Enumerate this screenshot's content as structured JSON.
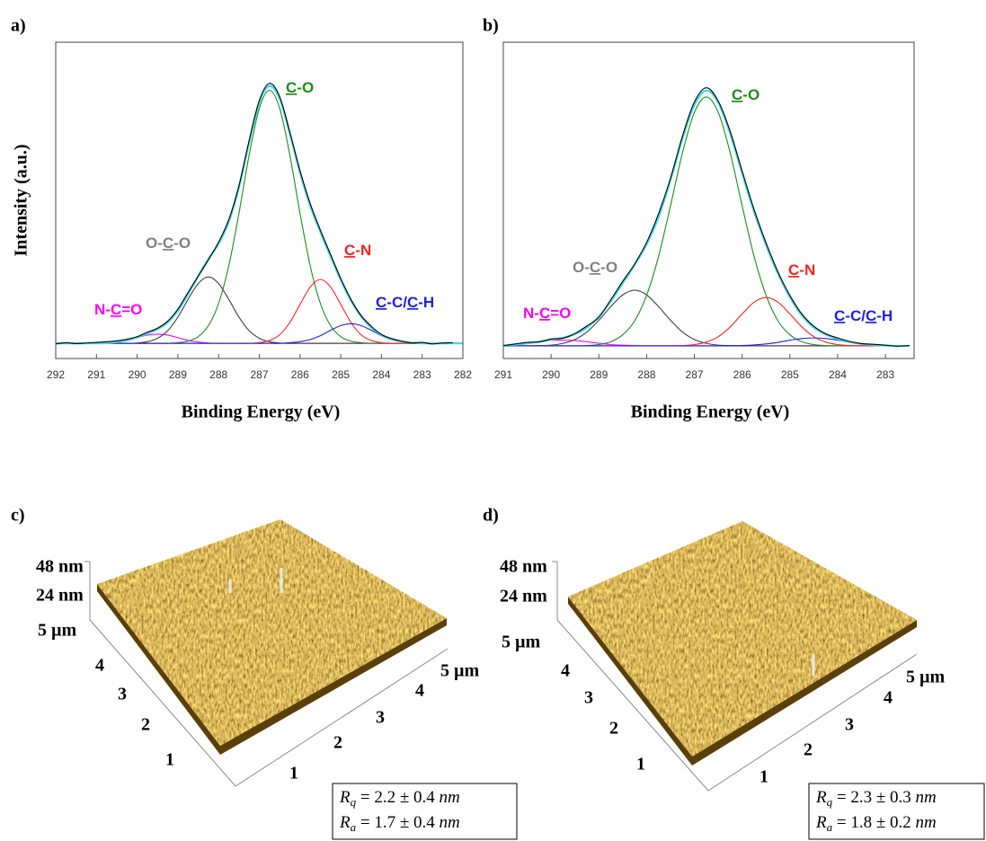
{
  "chart_data": [
    {
      "type": "line",
      "panel_label": "a)",
      "xlabel": "Binding Energy (eV)",
      "ylabel": "Intensity (a.u.)",
      "xlim": [
        292,
        282
      ],
      "xticks": [
        292,
        291,
        290,
        289,
        288,
        287,
        286,
        285,
        284,
        283,
        282
      ],
      "ylim": [
        0,
        100
      ],
      "x": [
        292,
        291.75,
        291.5,
        291.25,
        291,
        290.75,
        290.5,
        290.25,
        290,
        289.75,
        289.5,
        289.25,
        289,
        288.75,
        288.5,
        288.25,
        288,
        287.75,
        287.5,
        287.25,
        287,
        286.75,
        286.5,
        286.25,
        286,
        285.75,
        285.5,
        285.25,
        285,
        284.75,
        284.5,
        284.25,
        284,
        283.75,
        283.5,
        283.25,
        283,
        282.75,
        282.5,
        282.25,
        282
      ],
      "series": [
        {
          "color": "#ff00ff",
          "values": [
            4.8,
            4.8,
            4.8,
            4.8,
            4.8,
            4.8,
            4.8,
            4.8,
            4.8,
            4.8,
            4.8,
            4.8,
            4.8,
            4.8,
            4.8,
            4.8,
            4.8,
            4.8,
            4.8,
            4.8,
            4.8,
            4.8,
            4.8,
            4.8,
            4.8,
            4.8,
            4.8,
            4.8,
            4.8,
            4.8,
            4.8,
            4.8,
            4.8,
            4.8,
            4.8,
            4.8,
            4.8,
            4.8,
            4.8,
            4.8,
            4.8
          ]
        },
        {
          "color": "#ff00ff",
          "values": [
            4.8,
            4.8,
            4.8,
            4.8,
            4.8,
            4.9,
            5.2,
            5.7,
            6.6,
            7.4,
            7.7,
            7.4,
            6.6,
            5.7,
            5.2,
            4.9,
            4.8,
            4.8,
            4.8,
            4.8,
            4.8,
            4.8,
            4.8,
            4.8,
            4.8,
            4.8,
            4.8,
            4.8,
            4.8,
            4.8,
            4.8,
            4.8,
            4.8,
            4.8,
            4.8,
            4.8,
            4.8,
            4.8,
            4.8,
            4.8,
            4.8
          ]
        },
        {
          "color": "#404040",
          "values": [
            4.8,
            4.8,
            4.8,
            4.8,
            4.8,
            4.8,
            4.8,
            4.8,
            4.9,
            5.3,
            6.4,
            8.8,
            13.1,
            18.7,
            23.7,
            25.8,
            23.7,
            18.7,
            13.1,
            8.8,
            6.4,
            5.3,
            4.9,
            4.8,
            4.8,
            4.8,
            4.8,
            4.8,
            4.8,
            4.8,
            4.8,
            4.8,
            4.8,
            4.8,
            4.8,
            4.8,
            4.8,
            4.8,
            4.8,
            4.8,
            4.8
          ]
        },
        {
          "color": "#1a8c1a",
          "values": [
            4.8,
            4.8,
            4.8,
            4.8,
            4.8,
            4.8,
            4.8,
            4.8,
            4.8,
            4.8,
            4.8,
            4.8,
            5.0,
            5.5,
            6.9,
            10.4,
            17.4,
            29.3,
            45.9,
            64.3,
            79.1,
            84.8,
            79.1,
            64.3,
            45.9,
            29.3,
            17.4,
            10.4,
            6.9,
            5.5,
            5.0,
            4.8,
            4.8,
            4.8,
            4.8,
            4.8,
            4.8,
            4.8,
            4.8,
            4.8,
            4.8
          ]
        },
        {
          "color": "#ff2020",
          "values": [
            4.8,
            4.8,
            4.8,
            4.8,
            4.8,
            4.8,
            4.8,
            4.8,
            4.8,
            4.8,
            4.8,
            4.8,
            4.8,
            4.8,
            4.8,
            4.8,
            4.8,
            4.8,
            4.8,
            4.8,
            5.0,
            5.7,
            7.5,
            11.4,
            17.1,
            22.6,
            25.0,
            22.6,
            17.1,
            11.4,
            7.5,
            5.7,
            5.0,
            4.8,
            4.8,
            4.8,
            4.8,
            4.8,
            4.8,
            4.8,
            4.8
          ]
        },
        {
          "color": "#2020e0",
          "values": [
            4.8,
            4.8,
            4.8,
            4.8,
            4.8,
            4.8,
            4.8,
            4.8,
            4.8,
            4.8,
            4.8,
            4.8,
            4.8,
            4.8,
            4.8,
            4.8,
            4.8,
            4.8,
            4.8,
            4.8,
            4.8,
            4.8,
            4.8,
            5.0,
            5.3,
            6.0,
            7.2,
            8.9,
            10.4,
            11.0,
            10.4,
            8.9,
            7.2,
            6.0,
            5.3,
            5.0,
            4.8,
            4.8,
            4.8,
            4.8,
            4.8
          ]
        },
        {
          "color": "#40d8e8",
          "values": [
            4.8,
            4.8,
            4.8,
            4.8,
            4.8,
            4.9,
            5.2,
            5.7,
            6.7,
            7.9,
            9.3,
            11.4,
            15.1,
            20.3,
            26.2,
            31.5,
            36.3,
            43.2,
            54.2,
            68.3,
            80.9,
            86.2,
            82.1,
            71.1,
            58.7,
            48.3,
            40.0,
            32.3,
            24.8,
            18.3,
            13.3,
            9.8,
            7.4,
            6.0,
            5.3,
            5.0,
            4.8,
            4.8,
            4.8,
            4.8,
            4.8
          ]
        },
        {
          "color": "#000000",
          "values": [
            4.6,
            5.0,
            4.7,
            4.9,
            5.1,
            5.3,
            5.6,
            6.1,
            6.9,
            8.3,
            9.6,
            11.8,
            15.6,
            20.9,
            26.0,
            31.2,
            36.8,
            43.9,
            54.6,
            68.9,
            81.6,
            87.0,
            82.8,
            71.6,
            59.4,
            49.0,
            40.6,
            32.9,
            25.3,
            18.7,
            13.6,
            10.2,
            7.6,
            6.3,
            5.5,
            4.9,
            5.1,
            4.6,
            4.9,
            5.0,
            null
          ]
        }
      ],
      "annotations": [
        {
          "color": "#ff00ff",
          "parts": [
            {
              "text": "N-"
            },
            {
              "text": "C",
              "underline": true
            },
            {
              "text": "=O"
            }
          ]
        },
        {
          "color": "#808080",
          "parts": [
            {
              "text": "O-"
            },
            {
              "text": "C",
              "underline": true
            },
            {
              "text": "-O"
            }
          ]
        },
        {
          "color": "#1a8c1a",
          "parts": [
            {
              "text": "C",
              "underline": true
            },
            {
              "text": "-O"
            }
          ]
        },
        {
          "color": "#ff2020",
          "parts": [
            {
              "text": "C",
              "underline": true
            },
            {
              "text": "-N"
            }
          ]
        },
        {
          "color": "#2020e0",
          "parts": [
            {
              "text": "C",
              "underline": true
            },
            {
              "text": "-C/"
            },
            {
              "text": "C",
              "underline": true
            },
            {
              "text": "-H"
            }
          ]
        }
      ]
    },
    {
      "type": "line",
      "panel_label": "b)",
      "xlabel": "Binding Energy (eV)",
      "xlim": [
        291,
        282.4
      ],
      "xticks": [
        291,
        290,
        289,
        288,
        287,
        286,
        285,
        284,
        283
      ],
      "ylim": [
        0,
        100
      ],
      "x": [
        291,
        290.75,
        290.5,
        290.25,
        290,
        289.75,
        289.5,
        289.25,
        289,
        288.75,
        288.5,
        288.25,
        288,
        287.75,
        287.5,
        287.25,
        287,
        286.75,
        286.5,
        286.25,
        286,
        285.75,
        285.5,
        285.25,
        285,
        284.75,
        284.5,
        284.25,
        284,
        283.75,
        283.5,
        283.25,
        283,
        282.75,
        282.5
      ],
      "series": [
        {
          "color": "#ff00ff",
          "values": [
            4.0,
            4.0,
            4.0,
            4.0,
            4.0,
            4.0,
            4.0,
            4.0,
            4.0,
            4.0,
            4.0,
            4.0,
            4.0,
            4.0,
            4.0,
            4.0,
            4.0,
            4.0,
            4.0,
            4.0,
            4.0,
            4.0,
            4.0,
            4.0,
            4.0,
            4.0,
            4.0,
            4.0,
            4.0,
            4.0,
            4.0,
            4.0,
            4.0,
            4.0,
            4.0
          ]
        },
        {
          "color": "#ff00ff",
          "values": [
            4.2,
            4.4,
            4.8,
            5.3,
            5.7,
            5.8,
            5.7,
            5.3,
            4.8,
            4.4,
            4.2,
            4.1,
            4.0,
            4.0,
            4.0,
            4.0,
            4.0,
            4.0,
            4.0,
            4.0,
            4.0,
            4.0,
            4.0,
            4.0,
            4.0,
            4.0,
            4.0,
            4.0,
            4.0,
            4.0,
            4.0,
            4.0,
            4.0,
            4.0,
            4.0
          ]
        },
        {
          "color": "#404040",
          "values": [
            4.0,
            4.0,
            4.0,
            4.1,
            4.2,
            4.8,
            6.0,
            8.4,
            12.1,
            16.4,
            20.1,
            21.6,
            20.1,
            16.4,
            12.1,
            8.4,
            6.0,
            4.8,
            4.2,
            4.1,
            4.0,
            4.0,
            4.0,
            4.0,
            4.0,
            4.0,
            4.0,
            4.0,
            4.0,
            4.0,
            4.0,
            4.0,
            4.0,
            4.0,
            4.0
          ]
        },
        {
          "color": "#1a8c1a",
          "values": [
            4.0,
            4.0,
            4.0,
            4.0,
            4.0,
            4.0,
            4.0,
            4.1,
            4.4,
            5.3,
            7.5,
            11.9,
            20.0,
            32.3,
            48.3,
            65.0,
            77.8,
            82.7,
            77.8,
            65.0,
            48.3,
            32.3,
            20.0,
            11.9,
            7.5,
            5.3,
            4.4,
            4.1,
            4.0,
            4.0,
            4.0,
            4.0,
            4.0,
            4.0,
            4.0
          ]
        },
        {
          "color": "#ff2020",
          "values": [
            4.0,
            4.0,
            4.0,
            4.0,
            4.0,
            4.0,
            4.0,
            4.0,
            4.0,
            4.0,
            4.0,
            4.0,
            4.0,
            4.0,
            4.0,
            4.1,
            4.4,
            5.2,
            6.9,
            10.0,
            14.1,
            17.8,
            19.3,
            17.8,
            14.1,
            10.0,
            6.9,
            5.2,
            4.4,
            4.1,
            4.0,
            4.0,
            4.0,
            4.0,
            4.0
          ]
        },
        {
          "color": "#2020e0",
          "values": [
            4.0,
            4.0,
            4.0,
            4.0,
            4.0,
            4.0,
            4.0,
            4.0,
            4.0,
            4.0,
            4.0,
            4.0,
            4.0,
            4.0,
            4.0,
            4.0,
            4.0,
            4.0,
            4.0,
            4.0,
            4.1,
            4.3,
            4.6,
            5.1,
            5.8,
            6.3,
            6.5,
            6.3,
            5.8,
            5.1,
            4.6,
            4.3,
            4.1,
            4.0,
            4.0
          ]
        },
        {
          "color": "#40d8e8",
          "values": [
            4.2,
            4.4,
            4.8,
            5.4,
            5.9,
            6.6,
            7.7,
            9.8,
            13.3,
            18.1,
            23.8,
            29.6,
            36.1,
            44.7,
            56.4,
            69.5,
            80.2,
            84.7,
            80.9,
            71.1,
            58.5,
            46.4,
            35.9,
            26.8,
            19.4,
            13.6,
            9.8,
            7.6,
            6.2,
            5.2,
            4.6,
            4.3,
            4.1,
            4.0,
            4.0
          ]
        },
        {
          "color": "#000000",
          "values": [
            4.0,
            4.6,
            5.1,
            5.2,
            6.2,
            6.4,
            7.9,
            10.3,
            13.0,
            18.6,
            24.4,
            29.9,
            36.7,
            45.8,
            57.0,
            70.3,
            81.1,
            85.6,
            81.4,
            71.8,
            59.3,
            47.1,
            36.6,
            27.4,
            19.9,
            14.1,
            10.2,
            7.8,
            6.5,
            5.4,
            4.7,
            4.5,
            4.2,
            3.9,
            4.1
          ]
        }
      ],
      "annotations": [
        {
          "color": "#ff00ff",
          "parts": [
            {
              "text": "N-"
            },
            {
              "text": "C",
              "underline": true
            },
            {
              "text": "=O"
            }
          ]
        },
        {
          "color": "#808080",
          "parts": [
            {
              "text": "O-"
            },
            {
              "text": "C",
              "underline": true
            },
            {
              "text": "-O"
            }
          ]
        },
        {
          "color": "#1a8c1a",
          "parts": [
            {
              "text": "C",
              "underline": true
            },
            {
              "text": "-O"
            }
          ]
        },
        {
          "color": "#ff2020",
          "parts": [
            {
              "text": "C",
              "underline": true
            },
            {
              "text": "-N"
            }
          ]
        },
        {
          "color": "#2020e0",
          "parts": [
            {
              "text": "C",
              "underline": true
            },
            {
              "text": "-C/"
            },
            {
              "text": "C",
              "underline": true
            },
            {
              "text": "-H"
            }
          ]
        }
      ]
    }
  ],
  "afm_panels": [
    {
      "panel_label": "c)",
      "z_labels": [
        "48 nm",
        "24 nm"
      ],
      "y_labels": [
        "5 µm",
        "4",
        "3",
        "2",
        "1"
      ],
      "x_labels": [
        "1",
        "2",
        "3",
        "4",
        "5 µm"
      ],
      "roughness": [
        [
          {
            "text": "R",
            "italic": true
          },
          {
            "text": "q",
            "italic": true,
            "sub": true
          },
          {
            "text": " = 2.2 ± 0.4 "
          },
          {
            "text": "nm",
            "italic": true
          }
        ],
        [
          {
            "text": "R",
            "italic": true
          },
          {
            "text": "a",
            "italic": true,
            "sub": true
          },
          {
            "text": " = 1.7 ± 0.4 "
          },
          {
            "text": "nm",
            "italic": true
          }
        ]
      ]
    },
    {
      "panel_label": "d)",
      "z_labels": [
        "48 nm",
        "24 nm"
      ],
      "y_labels": [
        "5 µm",
        "4",
        "3",
        "2",
        "1"
      ],
      "x_labels": [
        "1",
        "2",
        "3",
        "4",
        "5 µm"
      ],
      "roughness": [
        [
          {
            "text": "R",
            "italic": true
          },
          {
            "text": "q",
            "italic": true,
            "sub": true
          },
          {
            "text": " = 2.3 ± 0.3 "
          },
          {
            "text": "nm",
            "italic": true
          }
        ],
        [
          {
            "text": "R",
            "italic": true
          },
          {
            "text": "a",
            "italic": true,
            "sub": true
          },
          {
            "text": " = 1.8 ± 0.2 "
          },
          {
            "text": "nm",
            "italic": true
          }
        ]
      ]
    }
  ]
}
